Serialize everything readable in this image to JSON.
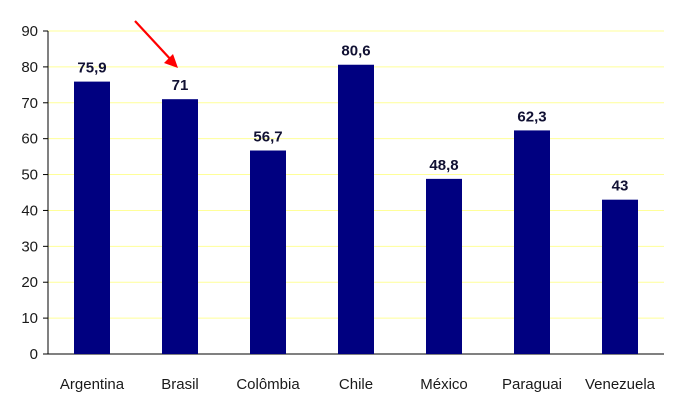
{
  "chart_data": {
    "type": "bar",
    "categories": [
      "Argentina",
      "Brasil",
      "Colômbia",
      "Chile",
      "México",
      "Paraguai",
      "Venezuela"
    ],
    "values": [
      75.9,
      71,
      56.7,
      80.6,
      48.8,
      62.3,
      43
    ],
    "value_labels": [
      "75,9",
      "71",
      "56,7",
      "80,6",
      "48,8",
      "62,3",
      "43"
    ],
    "ylim": [
      0,
      90
    ],
    "yticks": [
      0,
      10,
      20,
      30,
      40,
      50,
      60,
      70,
      80,
      90
    ],
    "grid": true,
    "legend": "none",
    "bar_color": "#000080",
    "grid_color": "#ffff99",
    "annotation": {
      "type": "arrow",
      "target": "Brasil",
      "color": "#ff0000"
    }
  }
}
